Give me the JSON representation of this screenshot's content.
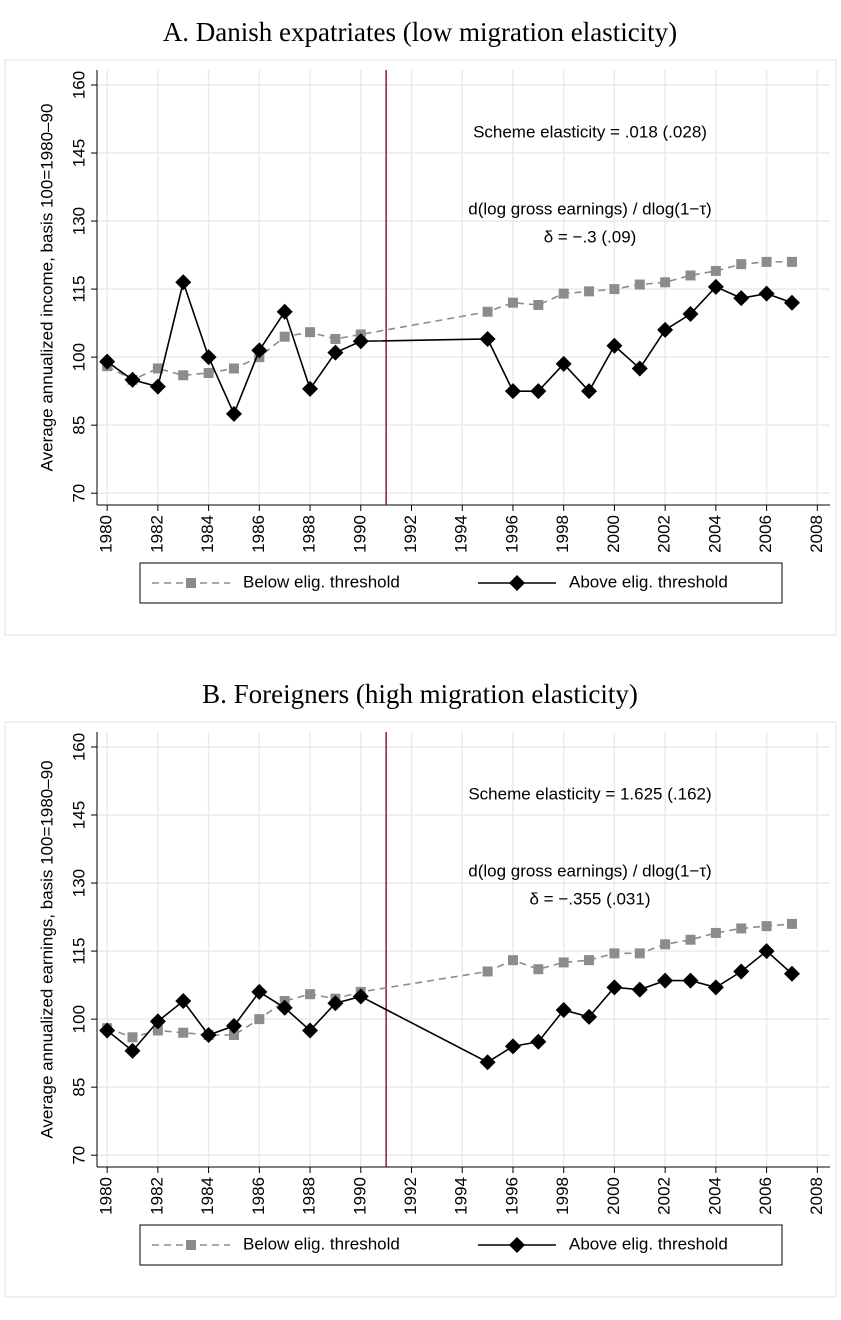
{
  "chart_data": [
    {
      "type": "line",
      "title": "A. Danish expatriates (low migration elasticity)",
      "ylabel": "Average annualized income, basis 100=1980–90",
      "x": [
        1980,
        1981,
        1982,
        1983,
        1984,
        1985,
        1986,
        1987,
        1988,
        1989,
        1990,
        1995,
        1996,
        1997,
        1998,
        1999,
        2000,
        2001,
        2002,
        2003,
        2004,
        2005,
        2006,
        2007
      ],
      "xlim": [
        1979.6,
        2008.5
      ],
      "xticks": [
        1980,
        1982,
        1984,
        1986,
        1988,
        1990,
        1992,
        1994,
        1996,
        1998,
        2000,
        2002,
        2004,
        2006,
        2008
      ],
      "ylim": [
        67.4,
        163.3
      ],
      "yticks": [
        70,
        85,
        100,
        115,
        130,
        145,
        160
      ],
      "grid": true,
      "vline": 1991,
      "vline_color": "#8b1a3a",
      "annotations": [
        "Scheme elasticity = .018 (.028)",
        "d(log gross earnings) / dlog(1−τ)",
        "δ = −.3 (.09)"
      ],
      "series": [
        {
          "name": "Below elig. threshold",
          "color": "#8c8c8c",
          "marker": "square",
          "dash": true,
          "values": [
            98,
            95,
            97.5,
            96,
            96.5,
            97.5,
            100,
            104.5,
            105.5,
            104,
            105,
            110,
            112,
            111.5,
            114,
            114.5,
            115,
            116,
            116.5,
            118,
            119,
            120.5,
            121,
            121
          ]
        },
        {
          "name": "Above elig. threshold",
          "color": "#000000",
          "marker": "diamond",
          "dash": false,
          "values": [
            99,
            95,
            93.5,
            116.5,
            100,
            87.5,
            101.5,
            110,
            93,
            101,
            103.5,
            104,
            92.5,
            92.5,
            98.5,
            92.5,
            102.5,
            97.5,
            106,
            109.5,
            115.5,
            113,
            114,
            112
          ]
        }
      ]
    },
    {
      "type": "line",
      "title": "B. Foreigners (high migration elasticity)",
      "ylabel": "Average annualized earnings, basis 100=1980–90",
      "x": [
        1980,
        1981,
        1982,
        1983,
        1984,
        1985,
        1986,
        1987,
        1988,
        1989,
        1990,
        1995,
        1996,
        1997,
        1998,
        1999,
        2000,
        2001,
        2002,
        2003,
        2004,
        2005,
        2006,
        2007
      ],
      "xlim": [
        1979.6,
        2008.5
      ],
      "xticks": [
        1980,
        1982,
        1984,
        1986,
        1988,
        1990,
        1992,
        1994,
        1996,
        1998,
        2000,
        2002,
        2004,
        2006,
        2008
      ],
      "ylim": [
        67.4,
        163.3
      ],
      "yticks": [
        70,
        85,
        100,
        115,
        130,
        145,
        160
      ],
      "grid": true,
      "vline": 1991,
      "vline_color": "#8b1a3a",
      "annotations": [
        "Scheme elasticity = 1.625 (.162)",
        "d(log gross earnings) / dlog(1−τ)",
        "δ = −.355 (.031)"
      ],
      "series": [
        {
          "name": "Below elig. threshold",
          "color": "#8c8c8c",
          "marker": "square",
          "dash": true,
          "values": [
            98,
            96,
            97.5,
            97,
            96.5,
            96.5,
            100,
            104,
            105.5,
            104.5,
            106,
            110.5,
            113,
            111,
            112.5,
            113,
            114.5,
            114.5,
            116.5,
            117.5,
            119,
            120,
            120.5,
            121
          ]
        },
        {
          "name": "Above elig. threshold",
          "color": "#000000",
          "marker": "diamond",
          "dash": false,
          "values": [
            97.5,
            93,
            99.5,
            104,
            96.5,
            98.5,
            106,
            102.5,
            97.5,
            103.5,
            105,
            90.5,
            94,
            95,
            102,
            100.5,
            107,
            106.5,
            108.5,
            108.5,
            107,
            110.5,
            115,
            110
          ]
        }
      ]
    }
  ]
}
